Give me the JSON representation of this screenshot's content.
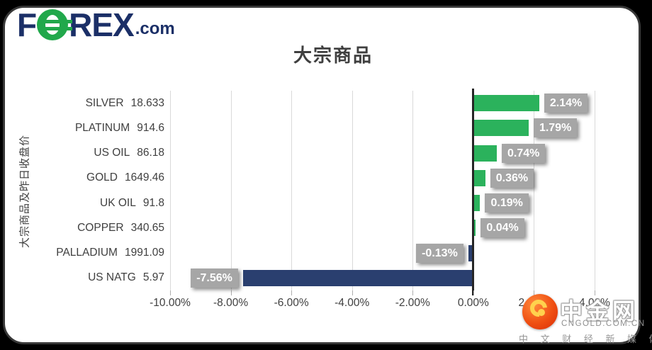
{
  "page": {
    "background": "#000000",
    "card_background": "#ffffff",
    "card_border": "#383838"
  },
  "header": {
    "brand": {
      "part_f": "F",
      "part_rex": "REX",
      "part_dotcom": ".com",
      "navy": "#1b2f67",
      "green": "#21a84b"
    }
  },
  "chart_data": {
    "type": "bar",
    "orientation": "horizontal",
    "title": "大宗商品",
    "ylabel": "大宗商品及昨日收盘价",
    "categories": [
      "SILVER",
      "PLATINUM",
      "US OIL",
      "GOLD",
      "UK OIL",
      "COPPER",
      "PALLADIUM",
      "US NATG"
    ],
    "close_prices": [
      "18.633",
      "914.6",
      "86.18",
      "1649.46",
      "91.8",
      "340.65",
      "1991.09",
      "5.97"
    ],
    "values_pct": [
      2.14,
      1.79,
      0.74,
      0.36,
      0.19,
      0.04,
      -0.13,
      -7.56
    ],
    "value_labels": [
      "2.14%",
      "1.79%",
      "0.74%",
      "0.36%",
      "0.19%",
      "0.04%",
      "-0.13%",
      "-7.56%"
    ],
    "xlim": [
      -10,
      4
    ],
    "x_tick_values": [
      -10,
      -8,
      -6,
      -4,
      -2,
      0,
      2,
      4
    ],
    "x_tick_labels": [
      "-10.00%",
      "-8.00%",
      "-6.00%",
      "-4.00%",
      "-2.00%",
      "0.00%",
      "2.00%",
      "4.00%"
    ],
    "grid": true,
    "legend": "none",
    "positive_color": "#2bb25c",
    "negative_color": "#2a3f6f",
    "value_label_bg": "#a6a6a6",
    "value_label_text": "#ffffff",
    "gridline_color": "#d9d9d9",
    "zero_line_color": "#262626"
  },
  "watermark": {
    "name": "中金网",
    "domain": "CNGOLD.COM.CN",
    "tagline": "中 文 财 经 新 媒 体"
  }
}
